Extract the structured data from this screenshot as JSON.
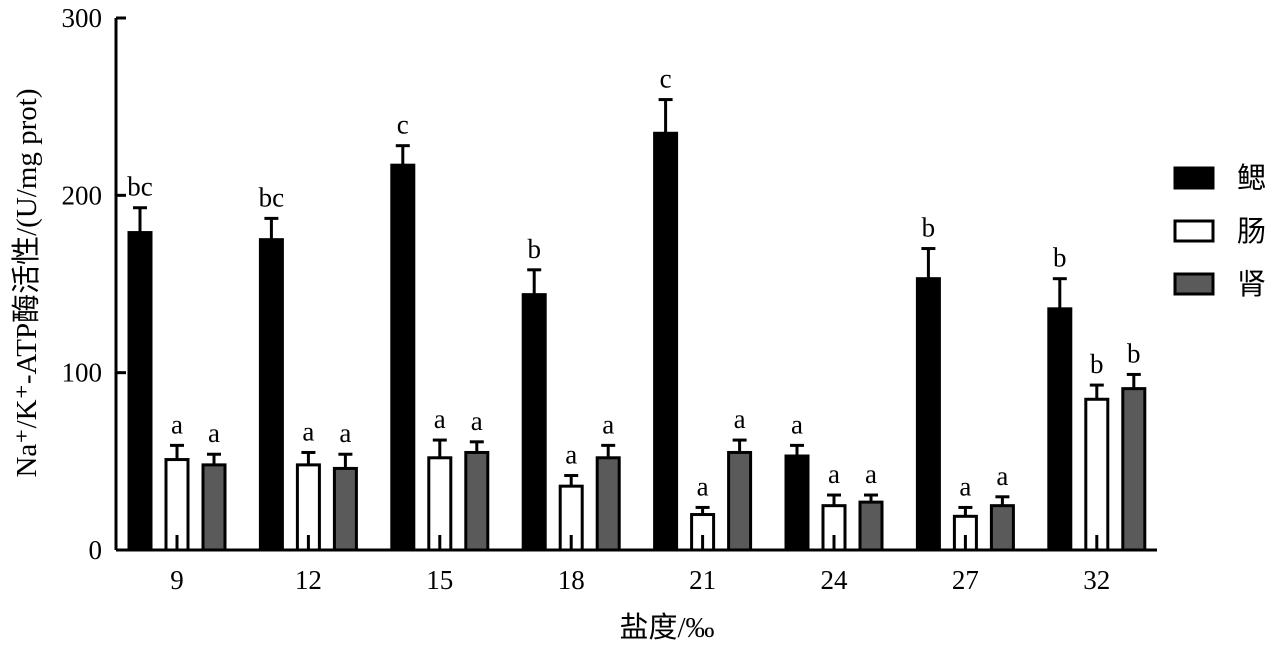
{
  "chart_data": {
    "type": "bar",
    "title": "",
    "xlabel": "盐度/‰",
    "ylabel": "Na⁺/K⁺-ATP酶活性/(U/mg prot)",
    "ylim": [
      0,
      300
    ],
    "yticks": [
      0,
      100,
      200,
      300
    ],
    "categories": [
      "9",
      "12",
      "15",
      "18",
      "21",
      "24",
      "27",
      "32"
    ],
    "legend_position": "right",
    "series": [
      {
        "name": "鳃",
        "color": "#000000",
        "values": [
          179,
          175,
          217,
          144,
          235,
          53,
          153,
          136
        ],
        "errors": [
          14,
          12,
          11,
          14,
          19,
          6,
          17,
          17
        ],
        "labels": [
          "bc",
          "bc",
          "c",
          "b",
          "c",
          "a",
          "b",
          "b"
        ]
      },
      {
        "name": "肠",
        "color": "#ffffff",
        "values": [
          51,
          48,
          52,
          36,
          20,
          25,
          19,
          85
        ],
        "errors": [
          8,
          7,
          10,
          6,
          4,
          6,
          5,
          8
        ],
        "labels": [
          "a",
          "a",
          "a",
          "a",
          "a",
          "a",
          "a",
          "b"
        ]
      },
      {
        "name": "肾",
        "color": "#5a5a5a",
        "values": [
          48,
          46,
          55,
          52,
          55,
          27,
          25,
          91
        ],
        "errors": [
          6,
          8,
          6,
          7,
          7,
          4,
          5,
          8
        ],
        "labels": [
          "a",
          "a",
          "a",
          "a",
          "a",
          "a",
          "a",
          "b"
        ]
      }
    ]
  }
}
